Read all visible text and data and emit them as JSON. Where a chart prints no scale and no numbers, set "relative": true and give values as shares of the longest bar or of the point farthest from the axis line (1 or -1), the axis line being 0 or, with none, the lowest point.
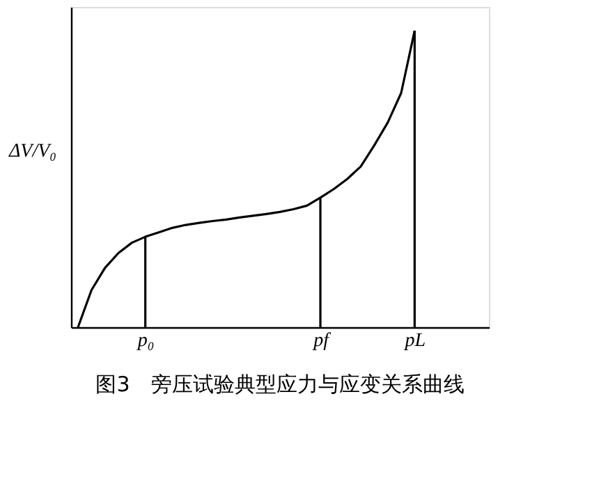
{
  "chart_data": {
    "type": "line",
    "relative": true,
    "title": "图3　旁压试验典型应力与应变关系曲线",
    "ylabel": "ΔV/V₀",
    "categories": [
      null,
      null,
      null,
      null,
      null,
      "p₀",
      null,
      null,
      null,
      null,
      null,
      null,
      null,
      null,
      null,
      null,
      null,
      null,
      "pf",
      null,
      null,
      null,
      null,
      null,
      null,
      "pL",
      null,
      null,
      null,
      null,
      null
    ],
    "tick_labels": "x",
    "grid": false,
    "legend": false,
    "marker": "none",
    "line_style": "solid",
    "series": [
      {
        "color": "#000000",
        "values": [
          0,
          0.125,
          0.2,
          0.25,
          0.285,
          0.305,
          0.32,
          0.335,
          0.345,
          0.352,
          0.358,
          0.363,
          0.37,
          0.376,
          0.382,
          0.389,
          0.398,
          0.41,
          0.437,
          0.466,
          0.5,
          0.542,
          0.613,
          0.69,
          0.79,
          1.0,
          null,
          null,
          null,
          null,
          null
        ]
      },
      {
        "type": "bar",
        "color": "#000000",
        "values": [
          null,
          null,
          null,
          null,
          null,
          0.305,
          null,
          null,
          null,
          null,
          null,
          null,
          null,
          null,
          null,
          null,
          null,
          null,
          0.437,
          null,
          null,
          null,
          null,
          null,
          null,
          1.0,
          null,
          null,
          null,
          null,
          null
        ]
      }
    ]
  }
}
